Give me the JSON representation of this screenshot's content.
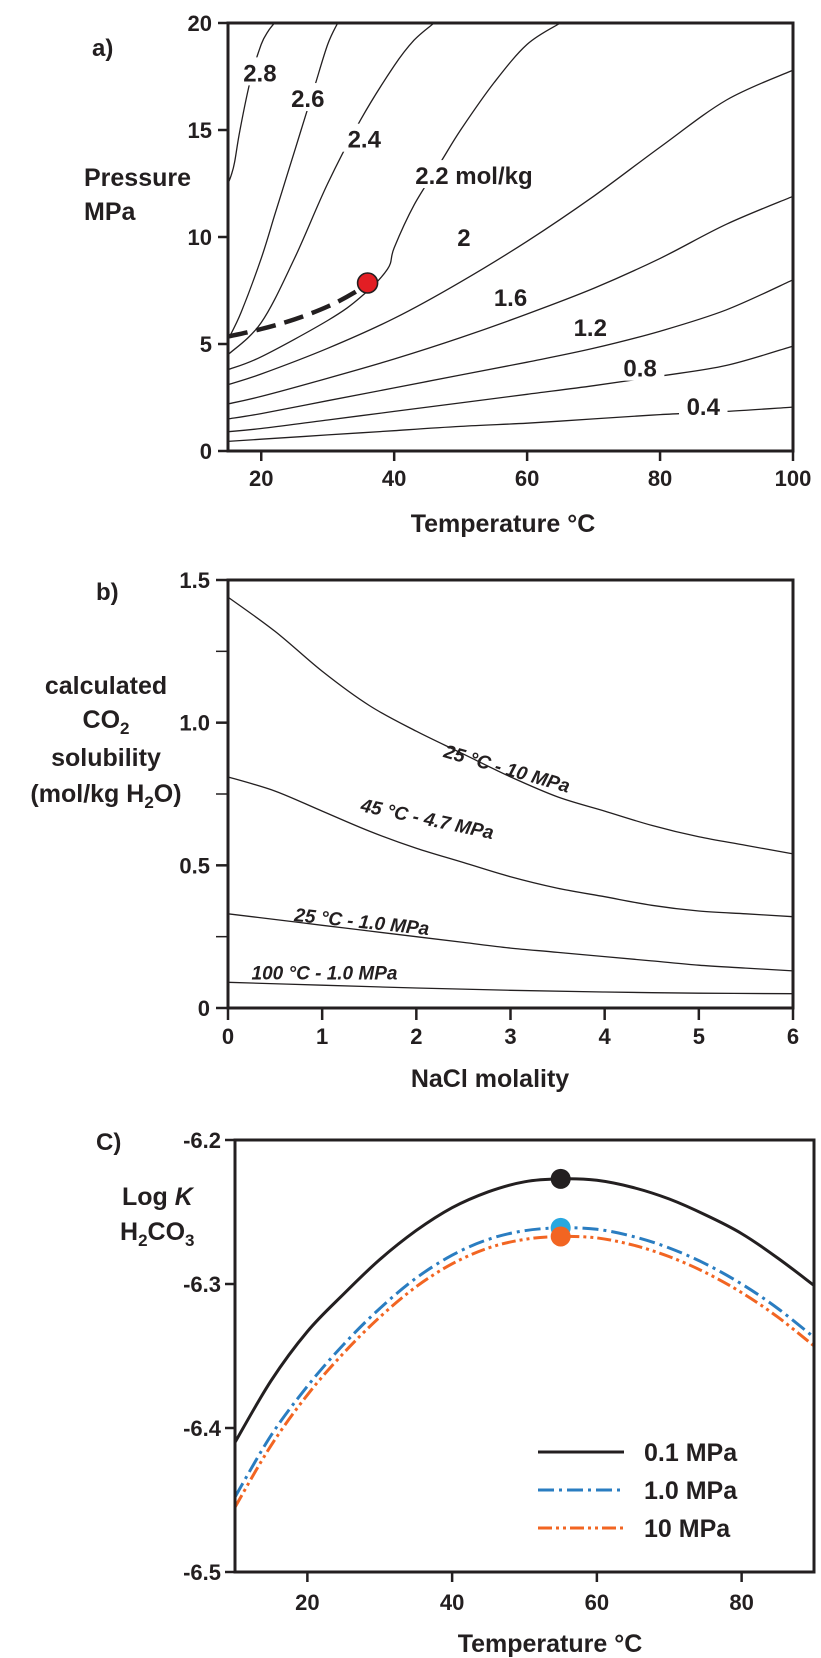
{
  "chart_data": [
    {
      "type": "line",
      "panel_label": "a)",
      "xlabel": "Temperature °C",
      "ylabel_lines": [
        "Pressure",
        "MPa"
      ],
      "xlim": [
        15,
        100
      ],
      "ylim": [
        0,
        20
      ],
      "xticks": [
        20,
        40,
        60,
        80,
        100
      ],
      "yticks": [
        0,
        5,
        10,
        15,
        20
      ],
      "ytick_labels": [
        "0",
        "5",
        "10",
        "15",
        "20"
      ],
      "xtick_labels": [
        "20",
        "40",
        "60",
        "80",
        "100"
      ],
      "series": [
        {
          "label": "0.4",
          "x": [
            15,
            20,
            30,
            40,
            50,
            60,
            70,
            80,
            90,
            100
          ],
          "y": [
            0.45,
            0.55,
            0.75,
            0.95,
            1.15,
            1.3,
            1.5,
            1.7,
            1.85,
            2.05
          ],
          "label_at": [
            86.5,
            2.0
          ]
        },
        {
          "label": "0.8",
          "x": [
            15,
            20,
            30,
            40,
            50,
            60,
            70,
            80,
            90,
            100
          ],
          "y": [
            0.9,
            1.05,
            1.45,
            1.85,
            2.25,
            2.65,
            3.05,
            3.5,
            4.0,
            4.9
          ],
          "label_at": [
            77.0,
            3.8
          ]
        },
        {
          "label": "1.2",
          "x": [
            15,
            20,
            30,
            40,
            50,
            60,
            70,
            80,
            90,
            100
          ],
          "y": [
            1.5,
            1.75,
            2.35,
            2.95,
            3.55,
            4.15,
            4.8,
            5.6,
            6.6,
            8.0
          ],
          "label_at": [
            69.5,
            5.7
          ]
        },
        {
          "label": "1.6",
          "x": [
            15,
            20,
            30,
            40,
            50,
            60,
            70,
            80,
            90,
            100
          ],
          "y": [
            2.2,
            2.55,
            3.4,
            4.3,
            5.3,
            6.4,
            7.6,
            9.0,
            10.6,
            11.9
          ],
          "label_at": [
            57.5,
            7.1
          ]
        },
        {
          "label": "2",
          "x": [
            15,
            20,
            30,
            40,
            50,
            60,
            70,
            80,
            90,
            100
          ],
          "y": [
            3.1,
            3.6,
            4.8,
            6.2,
            7.9,
            9.8,
            11.9,
            14.2,
            16.4,
            17.8
          ],
          "label_at": [
            50.5,
            9.9
          ]
        },
        {
          "label": "2.2 mol/kg",
          "x": [
            15,
            20,
            30,
            35,
            39,
            40,
            43,
            47,
            50,
            55,
            60,
            65
          ],
          "y": [
            3.8,
            4.4,
            6.1,
            7.2,
            8.5,
            9.5,
            11.5,
            13.5,
            15.0,
            17.2,
            19.0,
            20.0
          ],
          "label_at": [
            52.0,
            12.8
          ]
        },
        {
          "label": "2.4",
          "x": [
            15,
            20,
            25,
            30,
            35,
            40,
            43,
            46
          ],
          "y": [
            4.5,
            6.0,
            9.0,
            12.5,
            15.5,
            18.0,
            19.2,
            20.0
          ],
          "label_at": [
            35.5,
            14.5
          ]
        },
        {
          "label": "2.6",
          "x": [
            15,
            17,
            20,
            22,
            24,
            26,
            28,
            30,
            31.5
          ],
          "y": [
            5.2,
            6.5,
            9.0,
            11.0,
            13.0,
            15.0,
            17.0,
            19.0,
            20.0
          ],
          "label_at": [
            27.0,
            16.4
          ]
        },
        {
          "label": "2.8",
          "x": [
            15,
            15.5,
            16,
            16.8,
            18.5,
            20.0,
            21.0,
            22.0
          ],
          "y": [
            12.5,
            12.9,
            13.5,
            15.0,
            17.5,
            19.0,
            19.6,
            20.0
          ],
          "label_at": [
            19.8,
            17.6
          ]
        }
      ],
      "dashed_line": {
        "x": [
          15,
          20,
          25,
          30,
          34,
          36
        ],
        "y": [
          5.35,
          5.7,
          6.15,
          6.75,
          7.4,
          7.85
        ]
      },
      "marker": {
        "x": 36,
        "y": 7.85,
        "color": "#e31e24"
      }
    },
    {
      "type": "line",
      "panel_label": "b)",
      "xlabel": "NaCl molality",
      "ylabel_lines": [
        "calculated",
        "CO",
        "solubility",
        "(mol/kg H",
        "O)"
      ],
      "ylabel_sub": "2",
      "xlim": [
        0,
        6
      ],
      "ylim": [
        0,
        1.5
      ],
      "xticks": [
        0,
        1,
        2,
        3,
        4,
        5,
        6
      ],
      "xtick_labels": [
        "0",
        "1",
        "2",
        "3",
        "4",
        "5",
        "6"
      ],
      "yticks": [
        0,
        0.5,
        1.0,
        1.5
      ],
      "ytick_labels": [
        "0",
        "0.5",
        "1.0",
        "1.5"
      ],
      "minor_yticks": [
        0.25,
        0.75,
        1.25
      ],
      "series": [
        {
          "label": "25 °C - 10 MPa",
          "x": [
            0,
            0.5,
            1,
            1.5,
            2,
            2.5,
            3,
            3.5,
            4,
            4.5,
            5,
            5.5,
            6
          ],
          "y": [
            1.44,
            1.32,
            1.18,
            1.06,
            0.97,
            0.89,
            0.81,
            0.74,
            0.69,
            0.64,
            0.6,
            0.57,
            0.54
          ],
          "label_at": [
            2.28,
            0.88
          ],
          "label_angle": 16
        },
        {
          "label": "45 °C - 4.7 MPa",
          "x": [
            0,
            0.5,
            1,
            1.5,
            2,
            2.5,
            3,
            3.5,
            4,
            4.5,
            5,
            5.5,
            6
          ],
          "y": [
            0.81,
            0.76,
            0.69,
            0.62,
            0.56,
            0.51,
            0.46,
            0.42,
            0.39,
            0.36,
            0.34,
            0.33,
            0.32
          ],
          "label_at": [
            1.4,
            0.69
          ],
          "label_angle": 12
        },
        {
          "label": "25 °C - 1.0 MPa",
          "x": [
            0,
            0.5,
            1,
            1.5,
            2,
            2.5,
            3,
            3.5,
            4,
            4.5,
            5,
            5.5,
            6
          ],
          "y": [
            0.33,
            0.31,
            0.29,
            0.27,
            0.25,
            0.23,
            0.21,
            0.195,
            0.18,
            0.165,
            0.15,
            0.14,
            0.13
          ],
          "label_at": [
            0.7,
            0.305
          ],
          "label_angle": 6
        },
        {
          "label": "100 °C - 1.0 MPa",
          "x": [
            0,
            1,
            2,
            3,
            4,
            5,
            6
          ],
          "y": [
            0.09,
            0.08,
            0.07,
            0.062,
            0.056,
            0.052,
            0.05
          ],
          "label_at": [
            0.25,
            0.1
          ],
          "label_angle": 0
        }
      ]
    },
    {
      "type": "line",
      "panel_label": "C)",
      "xlabel": "Temperature °C",
      "ylabel_lines": [
        "Log ",
        "K",
        "H",
        "CO"
      ],
      "ylabel_sub": "2",
      "ylabel_sub2": "3",
      "xlim": [
        10,
        90
      ],
      "ylim": [
        -6.5,
        -6.2
      ],
      "xticks": [
        20,
        40,
        60,
        80
      ],
      "xtick_labels": [
        "20",
        "40",
        "60",
        "80"
      ],
      "yticks": [
        -6.5,
        -6.4,
        -6.3,
        -6.2
      ],
      "ytick_labels": [
        "-6.5",
        "-6.4",
        "-6.3",
        "-6.2"
      ],
      "series": [
        {
          "name": "0.1 MPa",
          "color": "#231f20",
          "dash": "solid",
          "x": [
            10,
            15,
            20,
            25,
            30,
            35,
            40,
            45,
            50,
            55,
            60,
            65,
            70,
            75,
            80,
            85,
            90
          ],
          "y": [
            -6.41,
            -6.367,
            -6.333,
            -6.307,
            -6.283,
            -6.263,
            -6.247,
            -6.236,
            -6.229,
            -6.227,
            -6.228,
            -6.233,
            -6.241,
            -6.252,
            -6.265,
            -6.282,
            -6.301
          ]
        },
        {
          "name": "1.0 MPa",
          "color": "#2a7dc1",
          "dash": "dashdot",
          "x": [
            10,
            15,
            20,
            25,
            30,
            35,
            40,
            45,
            50,
            55,
            60,
            65,
            70,
            75,
            80,
            85,
            90
          ],
          "y": [
            -6.448,
            -6.405,
            -6.371,
            -6.342,
            -6.317,
            -6.296,
            -6.28,
            -6.269,
            -6.263,
            -6.261,
            -6.262,
            -6.267,
            -6.275,
            -6.286,
            -6.3,
            -6.317,
            -6.337
          ]
        },
        {
          "name": "10  MPa",
          "color": "#f26522",
          "dash": "dashdotdot",
          "x": [
            10,
            15,
            20,
            25,
            30,
            35,
            40,
            45,
            50,
            55,
            60,
            65,
            70,
            75,
            80,
            85,
            90
          ],
          "y": [
            -6.455,
            -6.412,
            -6.377,
            -6.348,
            -6.323,
            -6.302,
            -6.286,
            -6.275,
            -6.269,
            -6.267,
            -6.268,
            -6.273,
            -6.281,
            -6.292,
            -6.306,
            -6.323,
            -6.343
          ]
        }
      ],
      "markers": [
        {
          "x": 55,
          "y": -6.227,
          "color": "#231f20"
        },
        {
          "x": 55,
          "y": -6.261,
          "color": "#29a8e0"
        },
        {
          "x": 55,
          "y": -6.267,
          "color": "#f26522"
        }
      ],
      "legend_placement": "bottom-right"
    }
  ]
}
